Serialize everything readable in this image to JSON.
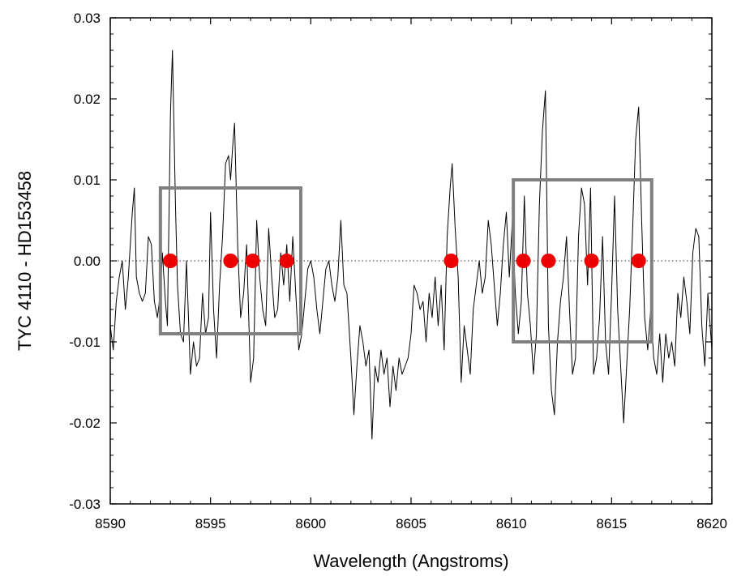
{
  "chart_data": {
    "type": "line",
    "title": "",
    "xlabel": "Wavelength (Angstroms)",
    "ylabel": "TYC 4110 - HD153458",
    "xlim": [
      8590,
      8620
    ],
    "ylim": [
      -0.03,
      0.03
    ],
    "x_ticks": [
      "8590",
      "8595",
      "8600",
      "8605",
      "8610",
      "8615",
      "8620"
    ],
    "y_ticks": [
      "-0.03",
      "-0.02",
      "-0.01",
      "0.00",
      "0.01",
      "0.02",
      "0.03"
    ],
    "grid": false,
    "zero_line": {
      "y": 0.0,
      "style": "dotted"
    },
    "series": [
      {
        "color": "#000000",
        "points": [
          [
            8590.0,
            -0.008
          ],
          [
            8590.15,
            -0.011
          ],
          [
            8590.3,
            -0.005
          ],
          [
            8590.45,
            -0.002
          ],
          [
            8590.6,
            0.0
          ],
          [
            8590.75,
            -0.006
          ],
          [
            8590.9,
            -0.002
          ],
          [
            8591.0,
            0.002
          ],
          [
            8591.1,
            0.006
          ],
          [
            8591.2,
            0.009
          ],
          [
            8591.3,
            -0.002
          ],
          [
            8591.45,
            -0.004
          ],
          [
            8591.6,
            -0.005
          ],
          [
            8591.75,
            -0.004
          ],
          [
            8591.9,
            0.003
          ],
          [
            8592.05,
            0.002
          ],
          [
            8592.2,
            -0.005
          ],
          [
            8592.35,
            -0.007
          ],
          [
            8592.5,
            -0.004
          ],
          [
            8592.6,
            0.001
          ],
          [
            8592.75,
            -0.005
          ],
          [
            8592.85,
            -0.008
          ],
          [
            8593.0,
            0.018
          ],
          [
            8593.1,
            0.026
          ],
          [
            8593.25,
            0.007
          ],
          [
            8593.35,
            -0.003
          ],
          [
            8593.5,
            -0.009
          ],
          [
            8593.65,
            -0.01
          ],
          [
            8593.8,
            0.0
          ],
          [
            8594.0,
            -0.014
          ],
          [
            8594.15,
            -0.01
          ],
          [
            8594.3,
            -0.013
          ],
          [
            8594.45,
            -0.012
          ],
          [
            8594.6,
            -0.004
          ],
          [
            8594.75,
            -0.009
          ],
          [
            8594.9,
            -0.007
          ],
          [
            8595.0,
            0.006
          ],
          [
            8595.15,
            -0.006
          ],
          [
            8595.3,
            -0.012
          ],
          [
            8595.45,
            -0.003
          ],
          [
            8595.6,
            0.003
          ],
          [
            8595.75,
            0.012
          ],
          [
            8595.9,
            0.013
          ],
          [
            8596.0,
            0.01
          ],
          [
            8596.1,
            0.014
          ],
          [
            8596.2,
            0.017
          ],
          [
            8596.35,
            0.002
          ],
          [
            8596.5,
            -0.007
          ],
          [
            8596.65,
            -0.004
          ],
          [
            8596.8,
            0.002
          ],
          [
            8597.0,
            -0.015
          ],
          [
            8597.15,
            -0.012
          ],
          [
            8597.3,
            0.005
          ],
          [
            8597.45,
            -0.002
          ],
          [
            8597.6,
            -0.006
          ],
          [
            8597.75,
            -0.008
          ],
          [
            8597.9,
            0.004
          ],
          [
            8598.05,
            -0.002
          ],
          [
            8598.2,
            -0.007
          ],
          [
            8598.35,
            -0.006
          ],
          [
            8598.5,
            0.001
          ],
          [
            8598.65,
            -0.003
          ],
          [
            8598.8,
            0.002
          ],
          [
            8598.95,
            -0.005
          ],
          [
            8599.1,
            0.003
          ],
          [
            8599.25,
            -0.004
          ],
          [
            8599.4,
            -0.011
          ],
          [
            8599.55,
            -0.009
          ],
          [
            8599.7,
            -0.005
          ],
          [
            8599.85,
            -0.001
          ],
          [
            8600.0,
            0.0
          ],
          [
            8600.15,
            -0.002
          ],
          [
            8600.3,
            -0.006
          ],
          [
            8600.45,
            -0.009
          ],
          [
            8600.6,
            -0.005
          ],
          [
            8600.75,
            -0.001
          ],
          [
            8600.9,
            0.0
          ],
          [
            8601.05,
            -0.003
          ],
          [
            8601.2,
            -0.005
          ],
          [
            8601.35,
            -0.002
          ],
          [
            8601.5,
            0.005
          ],
          [
            8601.65,
            -0.003
          ],
          [
            8601.8,
            -0.004
          ],
          [
            8602.0,
            -0.012
          ],
          [
            8602.15,
            -0.019
          ],
          [
            8602.3,
            -0.013
          ],
          [
            8602.45,
            -0.008
          ],
          [
            8602.6,
            -0.01
          ],
          [
            8602.75,
            -0.013
          ],
          [
            8602.9,
            -0.011
          ],
          [
            8603.05,
            -0.022
          ],
          [
            8603.2,
            -0.013
          ],
          [
            8603.35,
            -0.015
          ],
          [
            8603.5,
            -0.011
          ],
          [
            8603.65,
            -0.014
          ],
          [
            8603.8,
            -0.012
          ],
          [
            8603.95,
            -0.018
          ],
          [
            8604.1,
            -0.013
          ],
          [
            8604.25,
            -0.016
          ],
          [
            8604.4,
            -0.012
          ],
          [
            8604.55,
            -0.014
          ],
          [
            8604.7,
            -0.013
          ],
          [
            8604.85,
            -0.012
          ],
          [
            8605.0,
            -0.009
          ],
          [
            8605.15,
            -0.003
          ],
          [
            8605.3,
            -0.004
          ],
          [
            8605.45,
            -0.006
          ],
          [
            8605.6,
            -0.005
          ],
          [
            8605.75,
            -0.01
          ],
          [
            8605.9,
            -0.004
          ],
          [
            8606.05,
            -0.007
          ],
          [
            8606.2,
            -0.002
          ],
          [
            8606.35,
            -0.008
          ],
          [
            8606.5,
            -0.003
          ],
          [
            8606.65,
            -0.011
          ],
          [
            8606.8,
            0.003
          ],
          [
            8606.95,
            0.009
          ],
          [
            8607.05,
            0.012
          ],
          [
            8607.2,
            0.004
          ],
          [
            8607.35,
            -0.002
          ],
          [
            8607.5,
            -0.015
          ],
          [
            8607.65,
            -0.008
          ],
          [
            8607.8,
            -0.011
          ],
          [
            8607.95,
            -0.014
          ],
          [
            8608.1,
            -0.006
          ],
          [
            8608.25,
            -0.003
          ],
          [
            8608.4,
            0.0
          ],
          [
            8608.55,
            -0.004
          ],
          [
            8608.7,
            -0.002
          ],
          [
            8608.85,
            0.005
          ],
          [
            8609.0,
            0.002
          ],
          [
            8609.15,
            -0.003
          ],
          [
            8609.3,
            -0.008
          ],
          [
            8609.45,
            -0.004
          ],
          [
            8609.6,
            0.002
          ],
          [
            8609.75,
            0.006
          ],
          [
            8609.9,
            -0.002
          ],
          [
            8610.05,
            0.005
          ],
          [
            8610.2,
            -0.004
          ],
          [
            8610.35,
            -0.009
          ],
          [
            8610.5,
            -0.005
          ],
          [
            8610.65,
            0.008
          ],
          [
            8610.8,
            -0.004
          ],
          [
            8610.95,
            -0.008
          ],
          [
            8611.1,
            -0.014
          ],
          [
            8611.25,
            -0.009
          ],
          [
            8611.4,
            0.007
          ],
          [
            8611.55,
            0.016
          ],
          [
            8611.7,
            0.021
          ],
          [
            8611.85,
            -0.008
          ],
          [
            8612.0,
            -0.016
          ],
          [
            8612.15,
            -0.019
          ],
          [
            8612.3,
            -0.01
          ],
          [
            8612.45,
            -0.005
          ],
          [
            8612.6,
            -0.002
          ],
          [
            8612.75,
            0.003
          ],
          [
            8612.9,
            -0.006
          ],
          [
            8613.05,
            -0.014
          ],
          [
            8613.2,
            -0.012
          ],
          [
            8613.35,
            0.003
          ],
          [
            8613.5,
            0.009
          ],
          [
            8613.65,
            0.007
          ],
          [
            8613.8,
            -0.003
          ],
          [
            8613.95,
            0.009
          ],
          [
            8614.1,
            -0.014
          ],
          [
            8614.25,
            -0.012
          ],
          [
            8614.4,
            -0.007
          ],
          [
            8614.55,
            0.003
          ],
          [
            8614.7,
            -0.01
          ],
          [
            8614.85,
            -0.014
          ],
          [
            8615.0,
            -0.004
          ],
          [
            8615.15,
            0.008
          ],
          [
            8615.3,
            -0.006
          ],
          [
            8615.45,
            -0.013
          ],
          [
            8615.6,
            -0.02
          ],
          [
            8615.75,
            -0.013
          ],
          [
            8615.9,
            -0.006
          ],
          [
            8616.05,
            0.004
          ],
          [
            8616.2,
            0.015
          ],
          [
            8616.35,
            0.019
          ],
          [
            8616.5,
            0.005
          ],
          [
            8616.65,
            -0.007
          ],
          [
            8616.8,
            -0.011
          ],
          [
            8616.95,
            -0.006
          ],
          [
            8617.1,
            -0.012
          ],
          [
            8617.25,
            -0.014
          ],
          [
            8617.4,
            -0.009
          ],
          [
            8617.55,
            -0.015
          ],
          [
            8617.7,
            -0.009
          ],
          [
            8617.85,
            -0.012
          ],
          [
            8618.0,
            -0.01
          ],
          [
            8618.15,
            -0.013
          ],
          [
            8618.3,
            -0.004
          ],
          [
            8618.45,
            -0.007
          ],
          [
            8618.6,
            -0.002
          ],
          [
            8618.75,
            -0.005
          ],
          [
            8618.9,
            -0.009
          ],
          [
            8619.05,
            0.001
          ],
          [
            8619.2,
            0.004
          ],
          [
            8619.35,
            0.003
          ],
          [
            8619.5,
            -0.008
          ],
          [
            8619.65,
            -0.013
          ],
          [
            8619.8,
            -0.004
          ],
          [
            8620.0,
            -0.011
          ]
        ]
      }
    ],
    "markers": {
      "color": "#ee0000",
      "y": 0.0,
      "x": [
        8593.0,
        8596.0,
        8597.1,
        8598.8,
        8607.0,
        8610.6,
        8611.85,
        8614.0,
        8616.35
      ]
    },
    "boxes": [
      {
        "x": [
          8592.5,
          8599.5
        ],
        "y": [
          -0.009,
          0.009
        ],
        "color": "#808080"
      },
      {
        "x": [
          8610.1,
          8617.0
        ],
        "y": [
          -0.01,
          0.01
        ],
        "color": "#808080"
      }
    ]
  }
}
